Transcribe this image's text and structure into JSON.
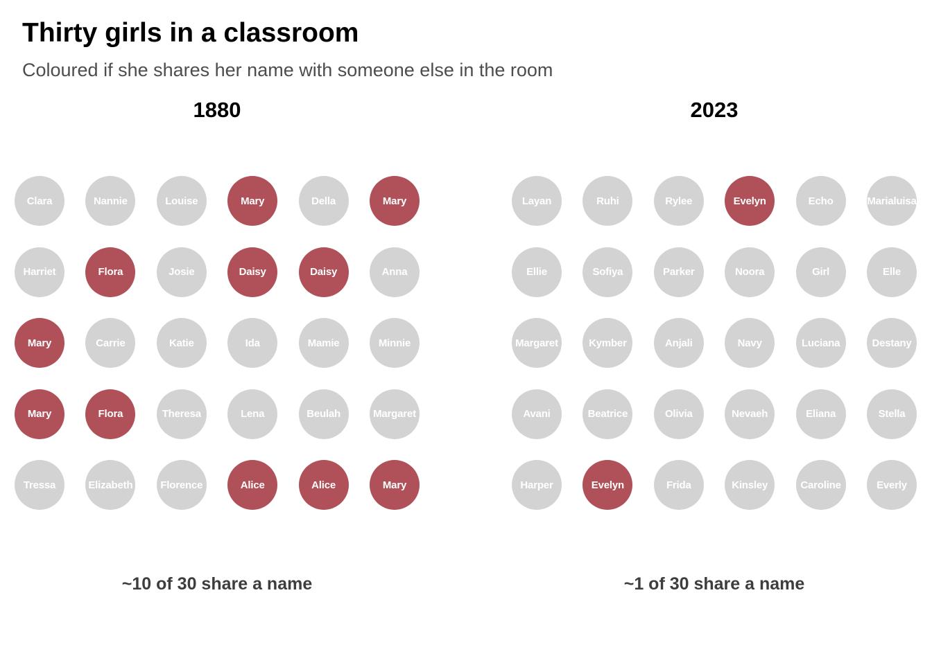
{
  "title": "Thirty girls in a classroom",
  "subtitle": "Coloured if she shares her name with someone else in the room",
  "colors": {
    "shared": "#b05058",
    "unique": "#d3d3d3",
    "label": "#ffffff"
  },
  "chart_data": [
    {
      "type": "unit-grid",
      "title": "1880",
      "caption": "~10 of 30 share a name",
      "rows": 5,
      "cols": 6,
      "cells": [
        {
          "name": "Clara",
          "shared": false
        },
        {
          "name": "Nannie",
          "shared": false
        },
        {
          "name": "Louise",
          "shared": false
        },
        {
          "name": "Mary",
          "shared": true
        },
        {
          "name": "Della",
          "shared": false
        },
        {
          "name": "Mary",
          "shared": true
        },
        {
          "name": "Harriet",
          "shared": false
        },
        {
          "name": "Flora",
          "shared": true
        },
        {
          "name": "Josie",
          "shared": false
        },
        {
          "name": "Daisy",
          "shared": true
        },
        {
          "name": "Daisy",
          "shared": true
        },
        {
          "name": "Anna",
          "shared": false
        },
        {
          "name": "Mary",
          "shared": true
        },
        {
          "name": "Carrie",
          "shared": false
        },
        {
          "name": "Katie",
          "shared": false
        },
        {
          "name": "Ida",
          "shared": false
        },
        {
          "name": "Mamie",
          "shared": false
        },
        {
          "name": "Minnie",
          "shared": false
        },
        {
          "name": "Mary",
          "shared": true
        },
        {
          "name": "Flora",
          "shared": true
        },
        {
          "name": "Theresa",
          "shared": false
        },
        {
          "name": "Lena",
          "shared": false
        },
        {
          "name": "Beulah",
          "shared": false
        },
        {
          "name": "Margaret",
          "shared": false
        },
        {
          "name": "Tressa",
          "shared": false
        },
        {
          "name": "Elizabeth",
          "shared": false
        },
        {
          "name": "Florence",
          "shared": false
        },
        {
          "name": "Alice",
          "shared": true
        },
        {
          "name": "Alice",
          "shared": true
        },
        {
          "name": "Mary",
          "shared": true
        }
      ]
    },
    {
      "type": "unit-grid",
      "title": "2023",
      "caption": "~1 of 30 share a name",
      "rows": 5,
      "cols": 6,
      "cells": [
        {
          "name": "Layan",
          "shared": false
        },
        {
          "name": "Ruhi",
          "shared": false
        },
        {
          "name": "Rylee",
          "shared": false
        },
        {
          "name": "Evelyn",
          "shared": true
        },
        {
          "name": "Echo",
          "shared": false
        },
        {
          "name": "Marialuisa",
          "shared": false
        },
        {
          "name": "Ellie",
          "shared": false
        },
        {
          "name": "Sofiya",
          "shared": false
        },
        {
          "name": "Parker",
          "shared": false
        },
        {
          "name": "Noora",
          "shared": false
        },
        {
          "name": "Girl",
          "shared": false
        },
        {
          "name": "Elle",
          "shared": false
        },
        {
          "name": "Margaret",
          "shared": false
        },
        {
          "name": "Kymber",
          "shared": false
        },
        {
          "name": "Anjali",
          "shared": false
        },
        {
          "name": "Navy",
          "shared": false
        },
        {
          "name": "Luciana",
          "shared": false
        },
        {
          "name": "Destany",
          "shared": false
        },
        {
          "name": "Avani",
          "shared": false
        },
        {
          "name": "Beatrice",
          "shared": false
        },
        {
          "name": "Olivia",
          "shared": false
        },
        {
          "name": "Nevaeh",
          "shared": false
        },
        {
          "name": "Eliana",
          "shared": false
        },
        {
          "name": "Stella",
          "shared": false
        },
        {
          "name": "Harper",
          "shared": false
        },
        {
          "name": "Evelyn",
          "shared": true
        },
        {
          "name": "Frida",
          "shared": false
        },
        {
          "name": "Kinsley",
          "shared": false
        },
        {
          "name": "Caroline",
          "shared": false
        },
        {
          "name": "Everly",
          "shared": false
        }
      ]
    }
  ]
}
